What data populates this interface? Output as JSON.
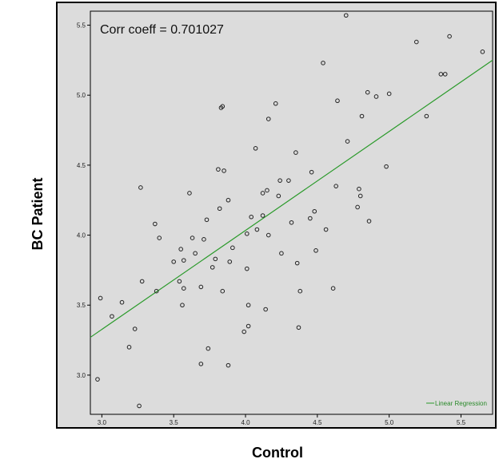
{
  "chart_data": {
    "type": "scatter",
    "title": "",
    "xlabel": "Control",
    "ylabel": "BC Patient",
    "annotation": "Corr coeff = 0.701027",
    "legend": "Linear Regression",
    "legend_position": "bottom-right",
    "grid": false,
    "xlim": [
      2.92,
      5.72
    ],
    "ylim": [
      2.72,
      5.6
    ],
    "xticks": [
      "3.0",
      "3.5",
      "4.0",
      "4.5",
      "5.0",
      "5.5"
    ],
    "yticks": [
      "3.0",
      "3.5",
      "4.0",
      "4.5",
      "5.0",
      "5.5"
    ],
    "regression": {
      "x": [
        2.92,
        5.72
      ],
      "y": [
        3.27,
        5.25
      ]
    },
    "colors": {
      "plot_bg": "#dcdcdc",
      "frame": "#000000",
      "points": "#222222",
      "line": "#2a9a2a"
    },
    "points": [
      [
        2.97,
        2.97
      ],
      [
        2.99,
        3.55
      ],
      [
        3.07,
        3.42
      ],
      [
        3.14,
        3.52
      ],
      [
        3.19,
        3.2
      ],
      [
        3.23,
        3.33
      ],
      [
        3.26,
        2.78
      ],
      [
        3.27,
        4.34
      ],
      [
        3.28,
        3.67
      ],
      [
        3.37,
        4.08
      ],
      [
        3.38,
        3.6
      ],
      [
        3.4,
        3.98
      ],
      [
        3.5,
        3.81
      ],
      [
        3.54,
        3.67
      ],
      [
        3.55,
        3.9
      ],
      [
        3.56,
        3.5
      ],
      [
        3.57,
        3.62
      ],
      [
        3.57,
        3.82
      ],
      [
        3.61,
        4.3
      ],
      [
        3.63,
        3.98
      ],
      [
        3.65,
        3.87
      ],
      [
        3.69,
        3.63
      ],
      [
        3.69,
        3.08
      ],
      [
        3.71,
        3.97
      ],
      [
        3.73,
        4.11
      ],
      [
        3.74,
        3.19
      ],
      [
        3.77,
        3.77
      ],
      [
        3.79,
        3.83
      ],
      [
        3.81,
        4.47
      ],
      [
        3.82,
        4.19
      ],
      [
        3.83,
        4.91
      ],
      [
        3.84,
        4.92
      ],
      [
        3.84,
        3.6
      ],
      [
        3.85,
        4.46
      ],
      [
        3.88,
        3.07
      ],
      [
        3.88,
        4.25
      ],
      [
        3.89,
        3.81
      ],
      [
        3.91,
        3.91
      ],
      [
        3.99,
        3.31
      ],
      [
        4.01,
        4.01
      ],
      [
        4.01,
        3.76
      ],
      [
        4.02,
        3.35
      ],
      [
        4.02,
        3.5
      ],
      [
        4.04,
        4.13
      ],
      [
        4.07,
        4.62
      ],
      [
        4.08,
        4.04
      ],
      [
        4.12,
        4.3
      ],
      [
        4.12,
        4.14
      ],
      [
        4.14,
        3.47
      ],
      [
        4.15,
        4.32
      ],
      [
        4.16,
        4.83
      ],
      [
        4.16,
        4.0
      ],
      [
        4.21,
        4.94
      ],
      [
        4.23,
        4.28
      ],
      [
        4.24,
        4.39
      ],
      [
        4.25,
        3.87
      ],
      [
        4.3,
        4.39
      ],
      [
        4.32,
        4.09
      ],
      [
        4.35,
        4.59
      ],
      [
        4.36,
        3.8
      ],
      [
        4.37,
        3.34
      ],
      [
        4.38,
        3.6
      ],
      [
        4.45,
        4.12
      ],
      [
        4.46,
        4.45
      ],
      [
        4.48,
        4.17
      ],
      [
        4.49,
        3.89
      ],
      [
        4.54,
        5.23
      ],
      [
        4.56,
        4.04
      ],
      [
        4.61,
        3.62
      ],
      [
        4.63,
        4.35
      ],
      [
        4.64,
        4.96
      ],
      [
        4.7,
        5.57
      ],
      [
        4.71,
        4.67
      ],
      [
        4.78,
        4.2
      ],
      [
        4.79,
        4.33
      ],
      [
        4.8,
        4.28
      ],
      [
        4.81,
        4.85
      ],
      [
        4.85,
        5.02
      ],
      [
        4.86,
        4.1
      ],
      [
        4.91,
        4.99
      ],
      [
        4.98,
        4.49
      ],
      [
        5.0,
        5.01
      ],
      [
        5.19,
        5.38
      ],
      [
        5.26,
        4.85
      ],
      [
        5.36,
        5.15
      ],
      [
        5.39,
        5.15
      ],
      [
        5.42,
        5.42
      ],
      [
        5.65,
        5.31
      ]
    ]
  }
}
